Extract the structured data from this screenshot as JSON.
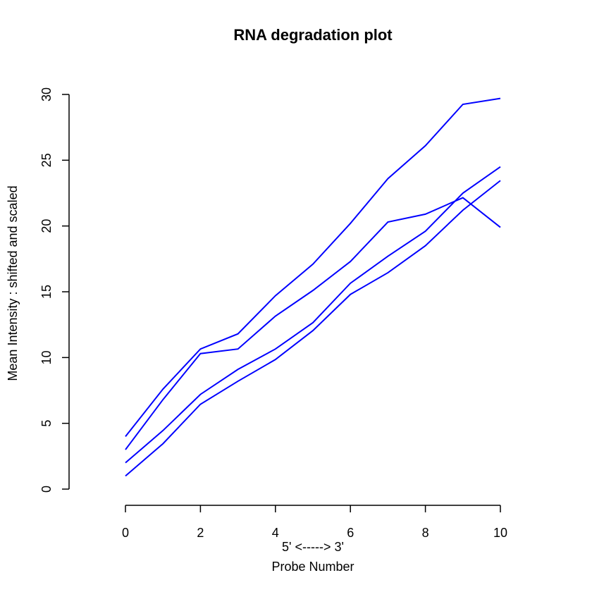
{
  "chart_data": {
    "type": "line",
    "title": "RNA degradation plot",
    "xlabel": "5' <-----> 3'",
    "xlabel2": "Probe Number",
    "ylabel": "Mean Intensity : shifted and scaled",
    "x": [
      0,
      1,
      2,
      3,
      4,
      5,
      6,
      7,
      8,
      9,
      10
    ],
    "xticks": [
      0,
      2,
      4,
      6,
      8,
      10
    ],
    "yticks": [
      0,
      5,
      10,
      15,
      20,
      25,
      30
    ],
    "xlim": [
      0,
      10
    ],
    "ylim": [
      0,
      30
    ],
    "grid": false,
    "line_color": "#0000ff",
    "series": [
      {
        "values": [
          4.0,
          7.6,
          10.65,
          11.8,
          14.7,
          17.1,
          20.2,
          23.6,
          26.1,
          29.25,
          29.7
        ]
      },
      {
        "values": [
          3.0,
          6.8,
          10.3,
          10.65,
          13.15,
          15.1,
          17.3,
          20.3,
          20.9,
          22.15,
          19.9
        ]
      },
      {
        "values": [
          2.0,
          4.45,
          7.2,
          9.1,
          10.65,
          12.65,
          15.65,
          17.7,
          19.6,
          22.5,
          24.5
        ]
      },
      {
        "values": [
          1.0,
          3.45,
          6.45,
          8.2,
          9.85,
          12.05,
          14.8,
          16.45,
          18.5,
          21.2,
          23.45
        ]
      }
    ]
  }
}
